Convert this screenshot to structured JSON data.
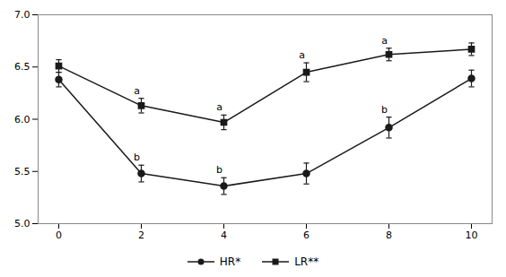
{
  "chart_data": {
    "type": "line",
    "x": [
      0,
      2,
      4,
      6,
      8,
      10
    ],
    "xlim": [
      -0.5,
      10.5
    ],
    "xticks": [
      0,
      2,
      4,
      6,
      8,
      10
    ],
    "ylim": [
      5.0,
      7.0
    ],
    "yticks": [
      {
        "value": 5.0,
        "label": "5.0"
      },
      {
        "value": 5.5,
        "label": "5.5"
      },
      {
        "value": 6.0,
        "label": "6.0"
      },
      {
        "value": 6.5,
        "label": "6.5"
      },
      {
        "value": 7.0,
        "label": "7.0"
      }
    ],
    "grid": false,
    "legend": "bottom",
    "series": [
      {
        "name": "HR*",
        "color": "#1a1a1a",
        "marker": "circle",
        "line_style": "solid",
        "values": [
          6.38,
          5.48,
          5.36,
          5.48,
          5.92,
          6.39
        ],
        "errors": [
          0.07,
          0.08,
          0.08,
          0.1,
          0.1,
          0.08
        ]
      },
      {
        "name": "LR**",
        "color": "#1a1a1a",
        "marker": "square",
        "line_style": "solid",
        "values": [
          6.51,
          6.13,
          5.97,
          6.45,
          6.62,
          6.67
        ],
        "errors": [
          0.06,
          0.07,
          0.07,
          0.09,
          0.06,
          0.06
        ]
      }
    ],
    "annotations": [
      {
        "text": "a",
        "x": 2,
        "series": "LR**"
      },
      {
        "text": "a",
        "x": 4,
        "series": "LR**"
      },
      {
        "text": "a",
        "x": 6,
        "series": "LR**"
      },
      {
        "text": "a",
        "x": 8,
        "series": "LR**"
      },
      {
        "text": "b",
        "x": 2,
        "series": "HR*"
      },
      {
        "text": "b",
        "x": 4,
        "series": "HR*"
      },
      {
        "text": "b",
        "x": 8,
        "series": "HR*"
      }
    ]
  }
}
